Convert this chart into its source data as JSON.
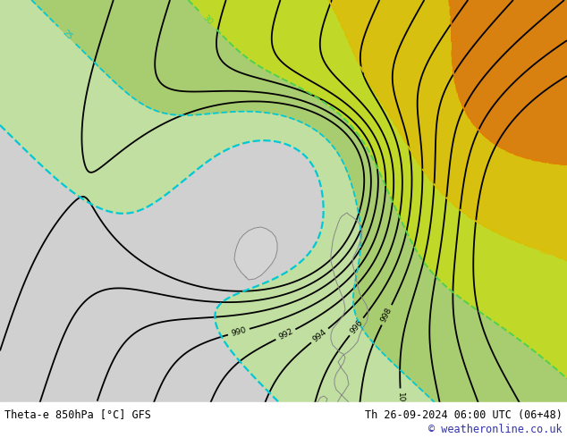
{
  "title_left": "Theta-e 850hPa [°C] GFS",
  "title_right": "Th 26-09-2024 06:00 UTC (06+48)",
  "copyright": "© weatheronline.co.uk",
  "bg_color": "#d0d0d0",
  "fig_width": 6.34,
  "fig_height": 4.9,
  "dpi": 100,
  "black_contour_color": "#000000",
  "cyan_color": "#00c8d4",
  "green_color": "#50d050",
  "yellow_green_color": "#a8d020",
  "yellow_color": "#d8c000",
  "orange_color": "#e08000",
  "white_bar_color": "#ffffff",
  "title_fontsize": 8.5,
  "label_fontsize": 6.5,
  "copyright_color": "#3333aa"
}
